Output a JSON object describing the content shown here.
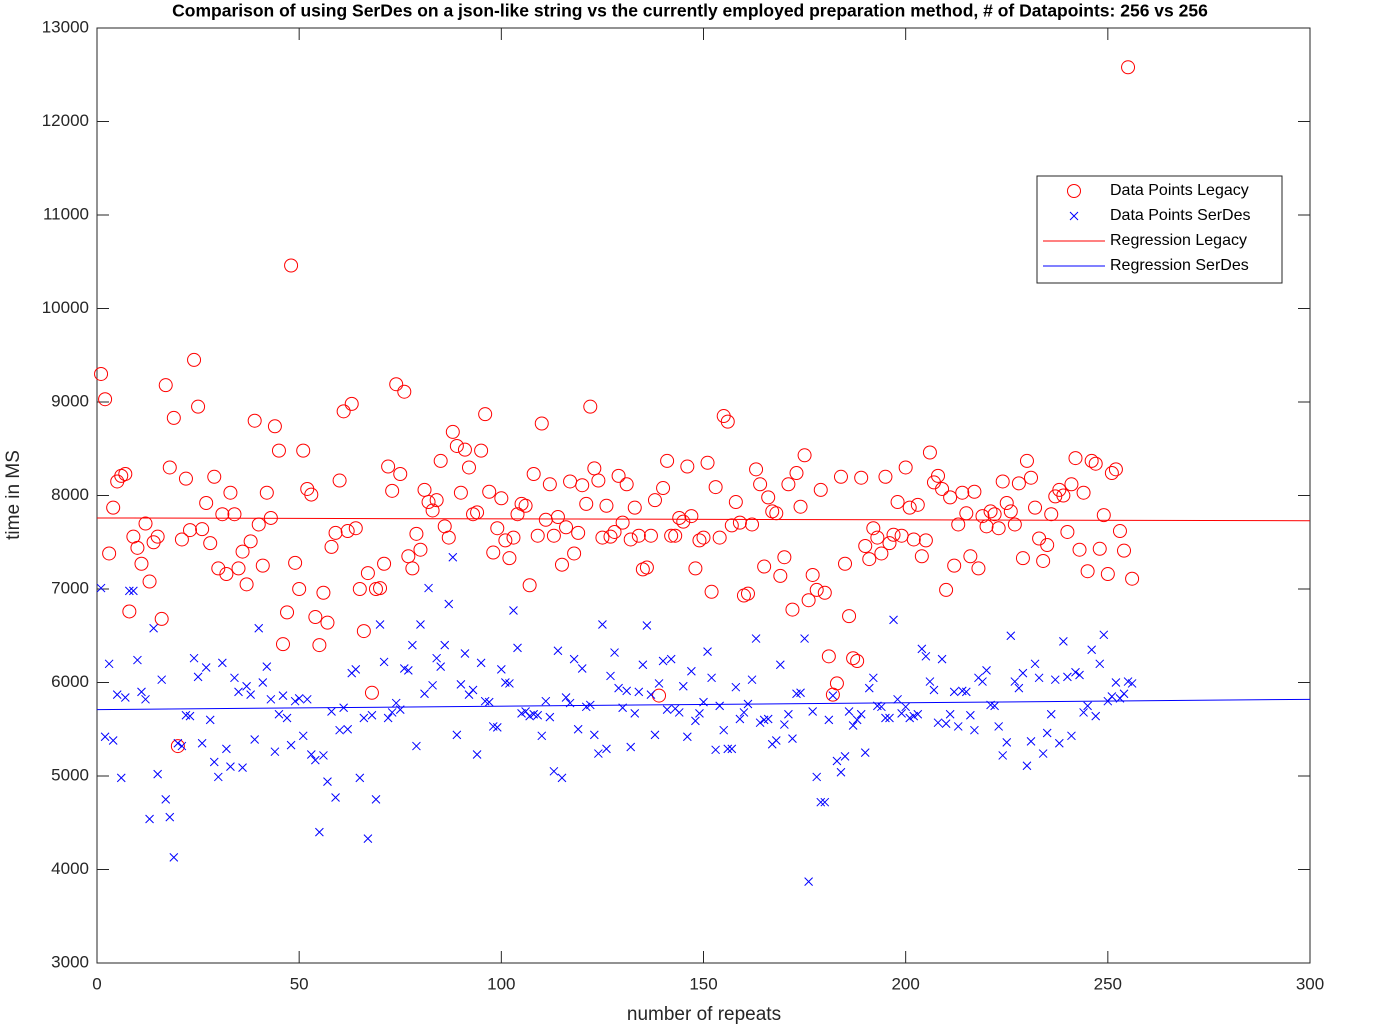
{
  "chart_data": {
    "type": "scatter",
    "title": "Comparison of using SerDes on a json-like string vs the currently employed preparation method, # of Datapoints: 256 vs 256",
    "x_label": "number of repeats",
    "y_label": "time in MS",
    "xlim": [
      0,
      300
    ],
    "ylim": [
      3000,
      13000
    ],
    "xticks": [
      0,
      50,
      100,
      150,
      200,
      250,
      300
    ],
    "yticks": [
      3000,
      4000,
      5000,
      6000,
      7000,
      8000,
      9000,
      10000,
      11000,
      12000,
      13000
    ],
    "grid": false,
    "legend_position": "upper-right",
    "x": [
      1,
      2,
      3,
      4,
      5,
      6,
      7,
      8,
      9,
      10,
      11,
      12,
      13,
      14,
      15,
      16,
      17,
      18,
      19,
      20,
      21,
      22,
      23,
      24,
      25,
      26,
      27,
      28,
      29,
      30,
      31,
      32,
      33,
      34,
      35,
      36,
      37,
      38,
      39,
      40,
      41,
      42,
      43,
      44,
      45,
      46,
      47,
      48,
      49,
      50,
      51,
      52,
      53,
      54,
      55,
      56,
      57,
      58,
      59,
      60,
      61,
      62,
      63,
      64,
      65,
      66,
      67,
      68,
      69,
      70,
      71,
      72,
      73,
      74,
      75,
      76,
      77,
      78,
      79,
      80,
      81,
      82,
      83,
      84,
      85,
      86,
      87,
      88,
      89,
      90,
      91,
      92,
      93,
      94,
      95,
      96,
      97,
      98,
      99,
      100,
      101,
      102,
      103,
      104,
      105,
      106,
      107,
      108,
      109,
      110,
      111,
      112,
      113,
      114,
      115,
      116,
      117,
      118,
      119,
      120,
      121,
      122,
      123,
      124,
      125,
      126,
      127,
      128,
      129,
      130,
      131,
      132,
      133,
      134,
      135,
      136,
      137,
      138,
      139,
      140,
      141,
      142,
      143,
      144,
      145,
      146,
      147,
      148,
      149,
      150,
      151,
      152,
      153,
      154,
      155,
      156,
      157,
      158,
      159,
      160,
      161,
      162,
      163,
      164,
      165,
      166,
      167,
      168,
      169,
      170,
      171,
      172,
      173,
      174,
      175,
      176,
      177,
      178,
      179,
      180,
      181,
      182,
      183,
      184,
      185,
      186,
      187,
      188,
      189,
      190,
      191,
      192,
      193,
      194,
      195,
      196,
      197,
      198,
      199,
      200,
      201,
      202,
      203,
      204,
      205,
      206,
      207,
      208,
      209,
      210,
      211,
      212,
      213,
      214,
      215,
      216,
      217,
      218,
      219,
      220,
      221,
      222,
      223,
      224,
      225,
      226,
      227,
      228,
      229,
      230,
      231,
      232,
      233,
      234,
      235,
      236,
      237,
      238,
      239,
      240,
      241,
      242,
      243,
      244,
      245,
      246,
      247,
      248,
      249,
      250,
      251,
      252,
      253,
      254,
      255,
      256
    ],
    "series": [
      {
        "name": "Data Points Legacy",
        "color": "#ff0000",
        "marker": "circle",
        "values": [
          9300,
          9030,
          7380,
          7870,
          8150,
          8210,
          8230,
          6760,
          7560,
          7440,
          7270,
          7700,
          7080,
          7500,
          7560,
          6680,
          9180,
          8300,
          8830,
          5320,
          7530,
          8180,
          7630,
          9450,
          8950,
          7640,
          7920,
          7490,
          8200,
          7220,
          7800,
          7160,
          8030,
          7800,
          7220,
          7400,
          7050,
          7510,
          8800,
          7690,
          7250,
          8030,
          7760,
          8740,
          8480,
          6410,
          6750,
          10460,
          7280,
          7000,
          8480,
          8070,
          8010,
          6700,
          6400,
          6960,
          6640,
          7450,
          7600,
          8160,
          8900,
          7620,
          8980,
          7650,
          7000,
          6550,
          7170,
          5890,
          7000,
          7010,
          7270,
          8310,
          8050,
          9190,
          8230,
          9110,
          7350,
          7220,
          7590,
          7420,
          8060,
          7930,
          7840,
          7950,
          8370,
          7670,
          7550,
          8680,
          8530,
          8030,
          8490,
          8300,
          7800,
          7820,
          8480,
          8870,
          8040,
          7390,
          7650,
          7970,
          7520,
          7330,
          7550,
          7800,
          7910,
          7890,
          7040,
          8230,
          7570,
          8770,
          7740,
          8120,
          7570,
          7770,
          7260,
          7660,
          8150,
          7380,
          7600,
          8110,
          7910,
          8950,
          8290,
          8160,
          7550,
          7890,
          7560,
          7610,
          8210,
          7710,
          8120,
          7530,
          7870,
          7570,
          7210,
          7230,
          7570,
          7950,
          5860,
          8080,
          8370,
          7570,
          7570,
          7760,
          7720,
          8310,
          7780,
          7220,
          7520,
          7550,
          8350,
          6970,
          8090,
          7550,
          8850,
          8790,
          7680,
          7930,
          7710,
          6930,
          6950,
          7690,
          8280,
          8120,
          7240,
          7980,
          7830,
          7810,
          7140,
          7340,
          8120,
          6780,
          8240,
          7880,
          8430,
          6880,
          7150,
          6990,
          8060,
          6960,
          6280,
          5870,
          5990,
          8200,
          7270,
          6710,
          6260,
          6230,
          8190,
          7460,
          7320,
          7650,
          7550,
          7380,
          8200,
          7490,
          7580,
          7930,
          7570,
          8300,
          7870,
          7530,
          7900,
          7350,
          7520,
          8460,
          8140,
          8210,
          8070,
          6990,
          7980,
          7250,
          7690,
          8030,
          7810,
          7350,
          8040,
          7220,
          7780,
          7670,
          7830,
          7800,
          7650,
          8150,
          7920,
          7830,
          7690,
          8130,
          7330,
          8370,
          8190,
          7870,
          7540,
          7300,
          7470,
          7800,
          7990,
          8060,
          8000,
          7610,
          8120,
          8400,
          7420,
          8030,
          7190,
          8370,
          8340,
          7430,
          7790,
          7160,
          8240,
          8280,
          7620,
          7410,
          12580,
          7110
        ]
      },
      {
        "name": "Data Points SerDes",
        "color": "#0000ff",
        "marker": "x",
        "values": [
          7010,
          5420,
          6200,
          5380,
          5870,
          4980,
          5840,
          6980,
          6980,
          6240,
          5900,
          5820,
          4540,
          6580,
          5020,
          6030,
          4750,
          4560,
          4130,
          5350,
          5320,
          5650,
          5640,
          6260,
          6060,
          5350,
          6160,
          5600,
          5150,
          4990,
          6210,
          5290,
          5100,
          6050,
          5900,
          5090,
          5960,
          5870,
          5390,
          6580,
          6000,
          6170,
          5820,
          5260,
          5660,
          5860,
          5620,
          5330,
          5800,
          5830,
          5430,
          5820,
          5230,
          5170,
          4400,
          5220,
          4940,
          5690,
          4770,
          5490,
          5730,
          5500,
          6100,
          6140,
          4980,
          5620,
          4330,
          5650,
          4750,
          6620,
          6220,
          5620,
          5680,
          5780,
          5710,
          6150,
          6130,
          6400,
          5320,
          6620,
          5880,
          7010,
          5970,
          6260,
          6170,
          6400,
          6840,
          7340,
          5440,
          5980,
          6310,
          5870,
          5920,
          5230,
          6210,
          5800,
          5790,
          5530,
          5520,
          6140,
          6000,
          5990,
          6770,
          6370,
          5670,
          5690,
          5640,
          5660,
          5650,
          5430,
          5800,
          5630,
          5050,
          6340,
          4980,
          5840,
          5780,
          6250,
          5500,
          6150,
          5740,
          5760,
          5440,
          5240,
          6620,
          5290,
          6070,
          6320,
          5940,
          5730,
          5910,
          5310,
          5670,
          5900,
          6190,
          6610,
          5870,
          5440,
          5990,
          6230,
          5710,
          6250,
          5720,
          5680,
          5960,
          5420,
          6120,
          5590,
          5670,
          5790,
          6330,
          6050,
          5280,
          5750,
          5490,
          5290,
          5290,
          5950,
          5610,
          5680,
          5770,
          6030,
          6470,
          5570,
          5600,
          5610,
          5340,
          5380,
          6190,
          5550,
          5660,
          5400,
          5880,
          5890,
          6470,
          3870,
          5690,
          4990,
          4720,
          4720,
          5600,
          5860,
          5160,
          5040,
          5210,
          5690,
          5540,
          5600,
          5660,
          5250,
          5940,
          6050,
          5750,
          5740,
          5620,
          5620,
          6670,
          5820,
          5670,
          5740,
          5620,
          5640,
          5660,
          6360,
          6280,
          6010,
          5920,
          5570,
          6250,
          5560,
          5660,
          5900,
          5530,
          5910,
          5900,
          5650,
          5490,
          6050,
          6010,
          6130,
          5760,
          5750,
          5530,
          5220,
          5360,
          6500,
          6010,
          5940,
          6100,
          5110,
          5370,
          6200,
          6050,
          5240,
          5460,
          5660,
          6030,
          5350,
          6440,
          6060,
          5430,
          6110,
          6080,
          5680,
          5750,
          6350,
          5640,
          6200,
          6510,
          5800,
          5850,
          6000,
          5830,
          5880,
          6010,
          5990
        ]
      },
      {
        "name": "Regression Legacy",
        "color": "#ff0000",
        "marker": "line",
        "x": [
          0,
          300
        ],
        "values": [
          7760,
          7730
        ]
      },
      {
        "name": "Regression SerDes",
        "color": "#0000ff",
        "marker": "line",
        "x": [
          0,
          300
        ],
        "values": [
          5710,
          5820
        ]
      }
    ]
  }
}
